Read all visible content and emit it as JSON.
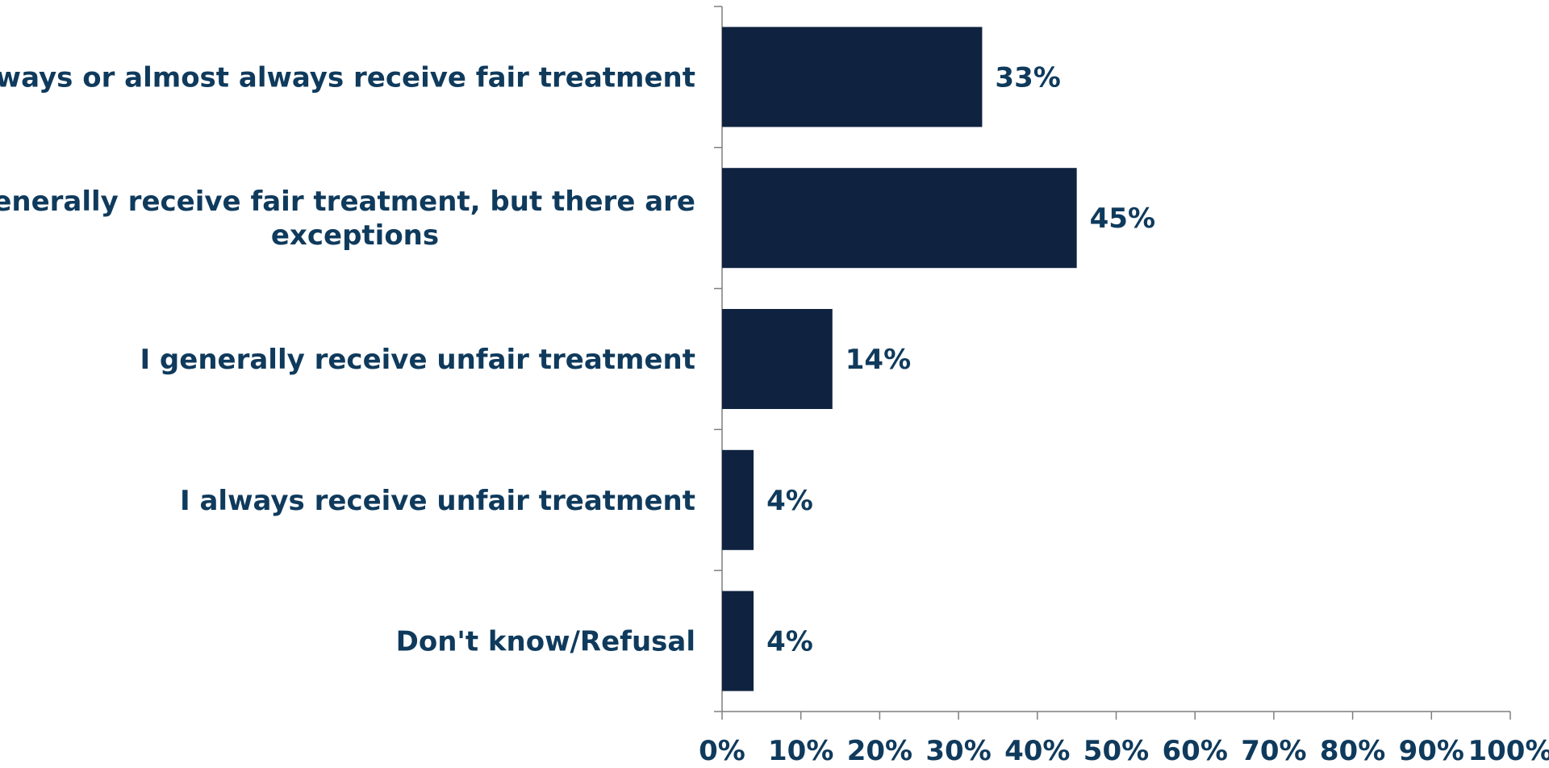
{
  "chart_data": {
    "type": "bar",
    "orientation": "horizontal",
    "categories": [
      [
        "I always or almost always receive fair treatment"
      ],
      [
        "I generally receive fair treatment, but there are",
        "exceptions"
      ],
      [
        "I generally receive unfair treatment"
      ],
      [
        "I always receive unfair treatment"
      ],
      [
        "Don't know/Refusal"
      ]
    ],
    "values": [
      33,
      45,
      14,
      4,
      4
    ],
    "data_labels": [
      "33%",
      "45%",
      "14%",
      "4%",
      "4%"
    ],
    "x_ticks": [
      "0%",
      "10%",
      "20%",
      "30%",
      "40%",
      "50%",
      "60%",
      "70%",
      "80%",
      "90%",
      "100%"
    ],
    "xlim": [
      0,
      100
    ],
    "title": "",
    "xlabel": "",
    "ylabel": "",
    "grid": false,
    "legend": "none",
    "colors": {
      "bar": "#0f2340",
      "text": "#0f3a5c",
      "axis": "#7f7f7f"
    }
  }
}
